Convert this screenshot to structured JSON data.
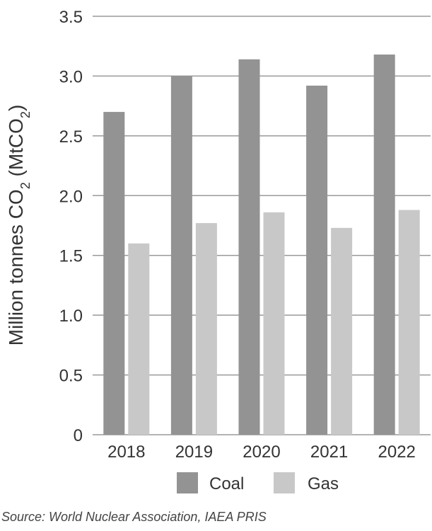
{
  "chart_data": {
    "type": "bar",
    "categories": [
      "2018",
      "2019",
      "2020",
      "2021",
      "2022"
    ],
    "series": [
      {
        "name": "Coal",
        "values": [
          2.7,
          3.0,
          3.14,
          2.92,
          3.18
        ],
        "color": "#939393"
      },
      {
        "name": "Gas",
        "values": [
          1.6,
          1.77,
          1.86,
          1.73,
          1.88
        ],
        "color": "#c8c8c9"
      }
    ],
    "ylabel": {
      "main": "Million tonnes CO",
      "sub1": "2",
      "mid": " (MtCO",
      "sub2": "2",
      "end": ")"
    },
    "ylim": [
      0,
      3.5
    ],
    "yticks": [
      "0",
      "0.5",
      "1.0",
      "1.5",
      "2.0",
      "2.5",
      "3.0",
      "3.5"
    ],
    "grid": true,
    "legend_position": "bottom"
  },
  "source": "Source: World Nuclear Association, IAEA PRIS"
}
